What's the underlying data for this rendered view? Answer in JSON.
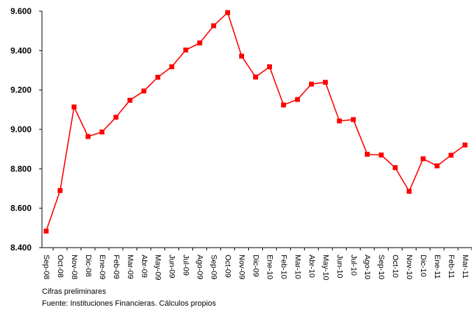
{
  "chart_data": {
    "type": "line",
    "title": "",
    "xlabel": "",
    "ylabel": "",
    "categories": [
      "Sep-08",
      "Oct-08",
      "Nov-08",
      "Dic-08",
      "Ene-09",
      "Feb-09",
      "Mar-09",
      "Abr-09",
      "May-09",
      "Jun-09",
      "Jul-09",
      "Ago-09",
      "Sep-09",
      "Oct-09",
      "Nov-09",
      "Dic-09",
      "Ene-10",
      "Feb-10",
      "Mar-10",
      "Abr-10",
      "May-10",
      "Jun-10",
      "Jul-10",
      "Ago-10",
      "Sep-10",
      "Oct-10",
      "Nov-10",
      "Dic-10",
      "Ene-11",
      "Feb-11",
      "Mar-11"
    ],
    "series": [
      {
        "values": [
          8484,
          8690,
          9114,
          8964,
          8987,
          9062,
          9148,
          9195,
          9265,
          9318,
          9403,
          9439,
          9526,
          9593,
          9372,
          9266,
          9318,
          9124,
          9152,
          9230,
          9239,
          9043,
          9050,
          8874,
          8870,
          8806,
          8686,
          8851,
          8815,
          8869,
          8921
        ],
        "color": "#ff0000"
      }
    ],
    "ylim": [
      8400,
      9600
    ],
    "yticks": [
      8400,
      8600,
      8800,
      9000,
      9200,
      9400,
      9600
    ],
    "ytick_labels": [
      "8.400",
      "8.600",
      "8.800",
      "9.000",
      "9.200",
      "9.400",
      "9.600"
    ],
    "grid": false,
    "legend": "none",
    "marker": "square"
  },
  "notes": {
    "preliminary": "Cifras preliminares",
    "source": "Fuente: Instituciones Financieras. Cálculos propios"
  }
}
